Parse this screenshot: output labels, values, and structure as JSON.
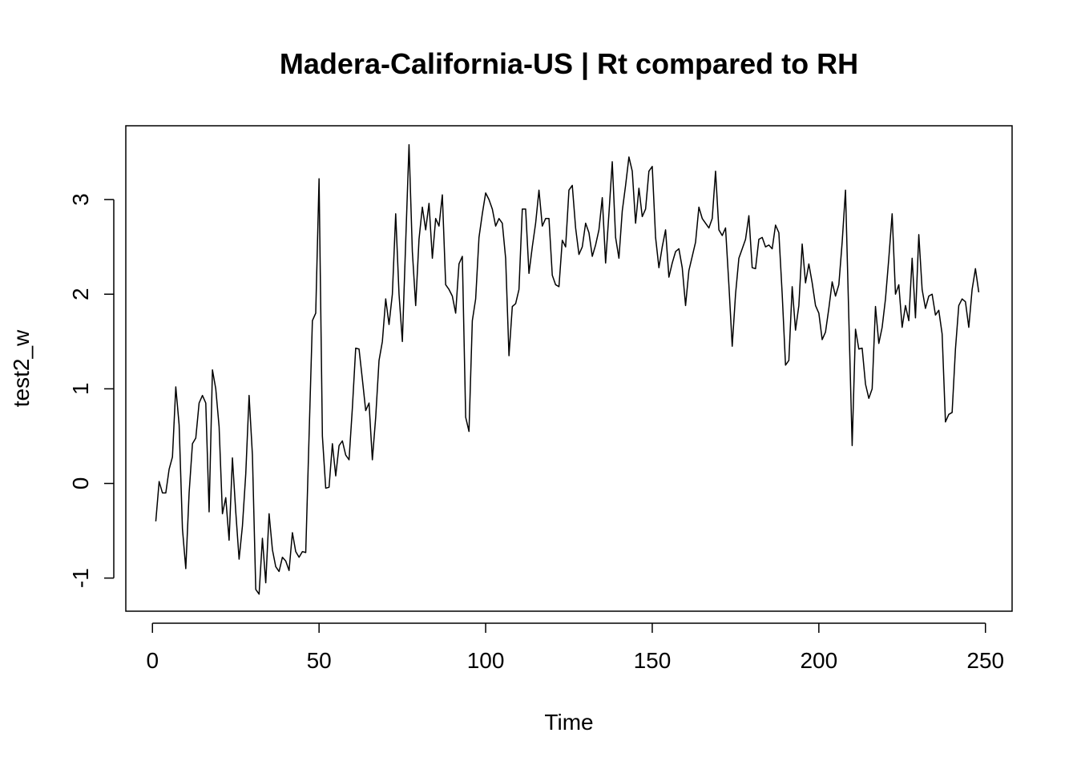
{
  "chart_data": {
    "type": "line",
    "title": "Madera-California-US | Rt compared to RH",
    "xlabel": "Time",
    "ylabel": "test2_w",
    "xlim": [
      -8,
      258
    ],
    "ylim": [
      -1.35,
      3.78
    ],
    "x_ticks": [
      0,
      50,
      100,
      150,
      200,
      250
    ],
    "x_tick_labels": [
      "0",
      "50",
      "100",
      "150",
      "200",
      "250"
    ],
    "y_ticks": [
      -1,
      0,
      1,
      2,
      3
    ],
    "y_tick_labels": [
      "-1",
      "0",
      "1",
      "2",
      "3"
    ],
    "grid": false,
    "line_color": "#000000",
    "series": [
      {
        "x_start": 1,
        "values": [
          -0.4,
          0.02,
          -0.1,
          -0.1,
          0.15,
          0.28,
          1.02,
          0.62,
          -0.48,
          -0.9,
          -0.1,
          0.42,
          0.48,
          0.85,
          0.93,
          0.85,
          -0.3,
          1.2,
          1.0,
          0.6,
          -0.32,
          -0.15,
          -0.6,
          0.27,
          -0.3,
          -0.8,
          -0.45,
          0.1,
          0.93,
          0.3,
          -1.12,
          -1.17,
          -0.58,
          -1.05,
          -0.32,
          -0.7,
          -0.88,
          -0.93,
          -0.78,
          -0.82,
          -0.92,
          -0.52,
          -0.72,
          -0.78,
          -0.72,
          -0.73,
          0.5,
          1.72,
          1.8,
          3.22,
          0.5,
          -0.05,
          -0.04,
          0.42,
          0.08,
          0.4,
          0.45,
          0.3,
          0.25,
          0.8,
          1.43,
          1.42,
          1.1,
          0.77,
          0.85,
          0.25,
          0.7,
          1.3,
          1.5,
          1.95,
          1.68,
          2.0,
          2.85,
          2.0,
          1.5,
          2.55,
          3.58,
          2.45,
          1.88,
          2.58,
          2.92,
          2.68,
          2.96,
          2.38,
          2.8,
          2.72,
          3.05,
          2.1,
          2.05,
          1.98,
          1.8,
          2.32,
          2.4,
          0.7,
          0.55,
          1.72,
          1.95,
          2.6,
          2.85,
          3.07,
          3.0,
          2.9,
          2.72,
          2.8,
          2.75,
          2.38,
          1.35,
          1.87,
          1.9,
          2.05,
          2.9,
          2.9,
          2.22,
          2.5,
          2.75,
          3.1,
          2.72,
          2.8,
          2.8,
          2.2,
          2.1,
          2.08,
          2.57,
          2.5,
          3.1,
          3.15,
          2.7,
          2.42,
          2.5,
          2.75,
          2.65,
          2.4,
          2.52,
          2.68,
          3.02,
          2.33,
          2.85,
          3.4,
          2.6,
          2.38,
          2.88,
          3.15,
          3.45,
          3.3,
          2.75,
          3.12,
          2.82,
          2.9,
          3.3,
          3.35,
          2.6,
          2.28,
          2.5,
          2.68,
          2.18,
          2.33,
          2.45,
          2.48,
          2.28,
          1.88,
          2.25,
          2.4,
          2.55,
          2.92,
          2.8,
          2.75,
          2.7,
          2.8,
          3.3,
          2.68,
          2.62,
          2.7,
          2.1,
          1.45,
          2.0,
          2.38,
          2.48,
          2.58,
          2.83,
          2.28,
          2.27,
          2.58,
          2.6,
          2.5,
          2.52,
          2.48,
          2.73,
          2.65,
          2.0,
          1.25,
          1.3,
          2.08,
          1.62,
          1.88,
          2.53,
          2.12,
          2.32,
          2.12,
          1.88,
          1.8,
          1.52,
          1.6,
          1.85,
          2.13,
          1.98,
          2.1,
          2.55,
          3.1,
          1.75,
          0.4,
          1.63,
          1.42,
          1.43,
          1.05,
          0.9,
          1.0,
          1.87,
          1.48,
          1.65,
          1.95,
          2.38,
          2.85,
          2.0,
          2.1,
          1.65,
          1.88,
          1.72,
          2.38,
          1.75,
          2.63,
          2.05,
          1.85,
          1.98,
          2.0,
          1.78,
          1.83,
          1.58,
          0.65,
          0.73,
          0.75,
          1.42,
          1.88,
          1.95,
          1.92,
          1.65,
          2.05,
          2.27,
          2.02
        ]
      }
    ]
  }
}
